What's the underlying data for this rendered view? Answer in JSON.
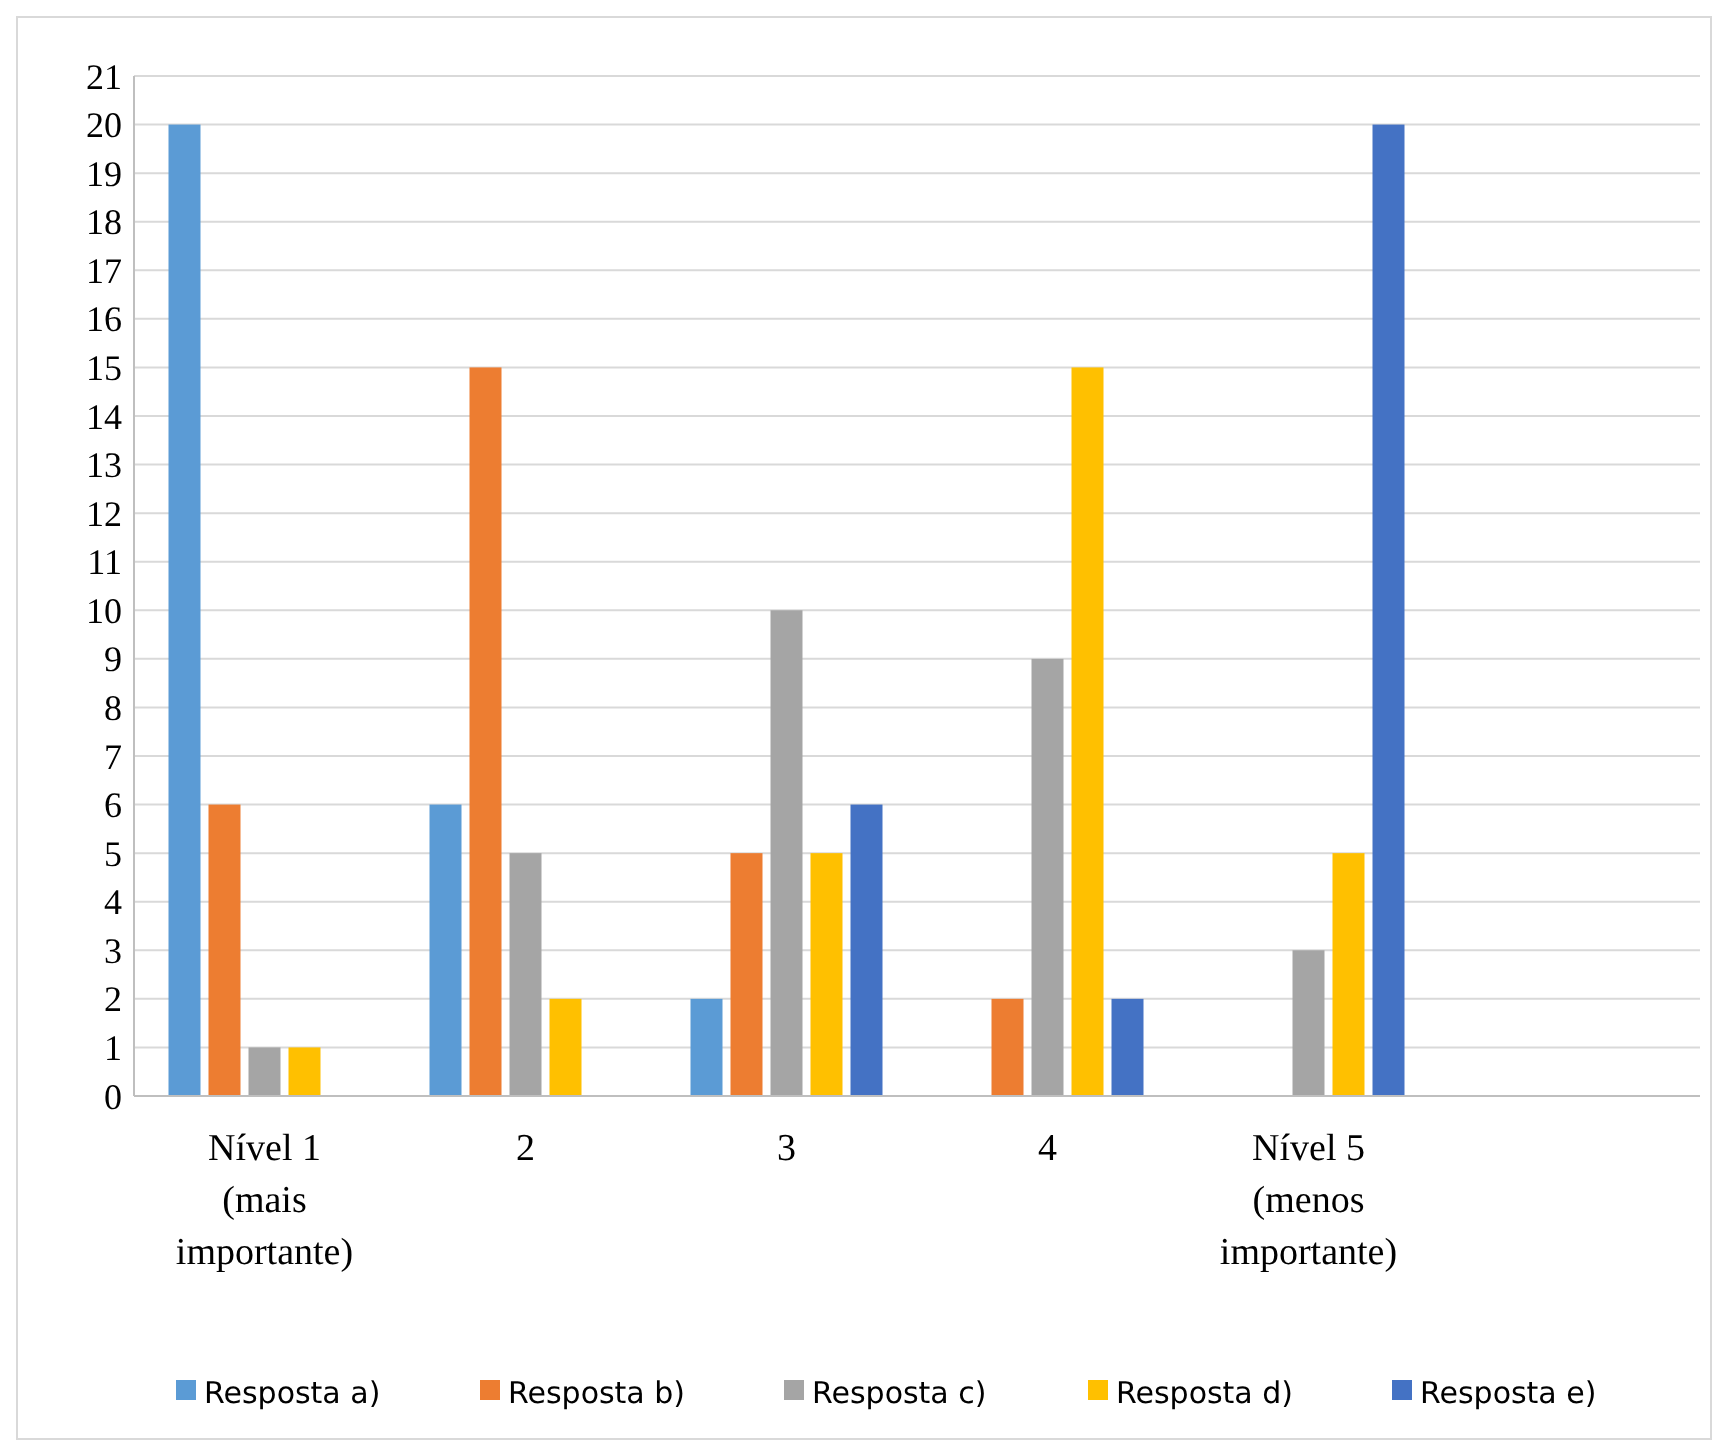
{
  "chart_data": {
    "type": "bar",
    "categories": [
      "Nível 1\n(mais\nimportante)",
      "2",
      "3",
      "4",
      "Nível 5\n(menos\nimportante)",
      null
    ],
    "series": [
      {
        "name": "Resposta a)",
        "color": "#5b9bd5",
        "values": [
          20,
          6,
          2,
          0,
          0,
          null
        ]
      },
      {
        "name": "Resposta b)",
        "color": "#ed7d31",
        "values": [
          6,
          15,
          5,
          2,
          0,
          null
        ]
      },
      {
        "name": "Resposta c)",
        "color": "#a5a5a5",
        "values": [
          1,
          5,
          10,
          9,
          3,
          null
        ]
      },
      {
        "name": "Resposta d)",
        "color": "#ffc000",
        "values": [
          1,
          2,
          5,
          15,
          5,
          null
        ]
      },
      {
        "name": "Resposta e)",
        "color": "#4472c4",
        "values": [
          0,
          0,
          6,
          2,
          20,
          null
        ]
      }
    ],
    "ylim": [
      0,
      21
    ],
    "yticks": [
      0,
      1,
      2,
      3,
      4,
      5,
      6,
      7,
      8,
      9,
      10,
      11,
      12,
      13,
      14,
      15,
      16,
      17,
      18,
      19,
      20,
      21
    ],
    "grid": "y",
    "legend": "bottom"
  }
}
